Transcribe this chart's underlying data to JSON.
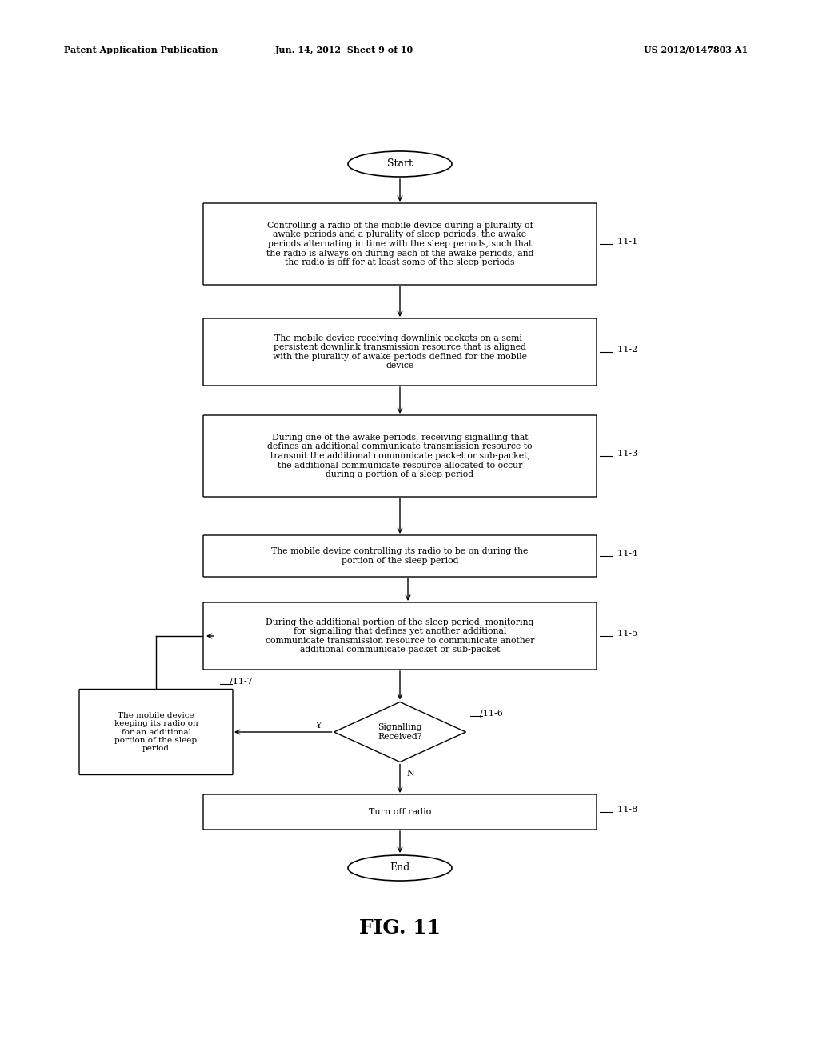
{
  "bg_color": "#ffffff",
  "text_color": "#000000",
  "header_left": "Patent Application Publication",
  "header_center": "Jun. 14, 2012  Sheet 9 of 10",
  "header_right": "US 2012/0147803 A1",
  "figure_label": "FIG. 11",
  "box1_text": "Controlling a radio of the mobile device during a plurality of\nawake periods and a plurality of sleep periods, the awake\nperiods alternating in time with the sleep periods, such that\nthe radio is always on during each of the awake periods, and\nthe radio is off for at least some of the sleep periods",
  "box2_text": "The mobile device receiving downlink packets on a semi-\npersistent downlink transmission resource that is aligned\nwith the plurality of awake periods defined for the mobile\ndevice",
  "box3_text": "During one of the awake periods, receiving signalling that\ndefines an additional communicate transmission resource to\ntransmit the additional communicate packet or sub-packet,\nthe additional communicate resource allocated to occur\nduring a portion of a sleep period",
  "box4_text": "The mobile device controlling its radio to be on during the\nportion of the sleep period",
  "box5_text": "During the additional portion of the sleep period, monitoring\nfor signalling that defines yet another additional\ncommunicate transmission resource to communicate another\nadditional communicate packet or sub-packet",
  "diamond_text": "Signalling\nReceived?",
  "box7_text": "The mobile device\nkeeping its radio on\nfor an additional\nportion of the sleep\nperiod",
  "box8_text": "Turn off radio"
}
